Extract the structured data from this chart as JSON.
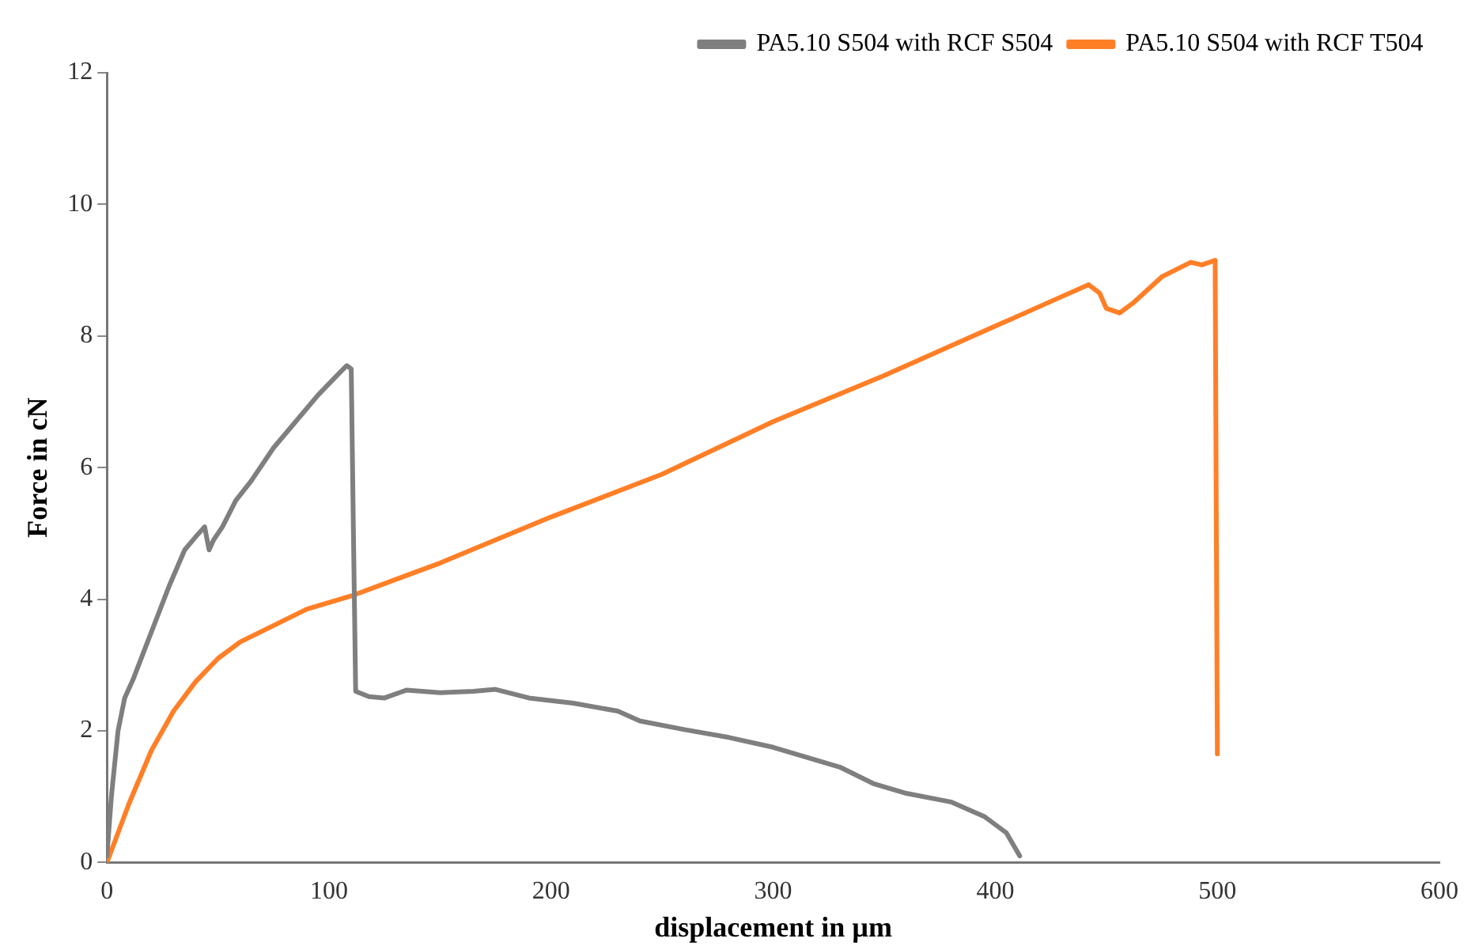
{
  "chart_data": {
    "type": "line",
    "xlabel": "displacement in µm",
    "ylabel": "Force in cN",
    "xlim": [
      0,
      600
    ],
    "xticks": [
      0,
      100,
      200,
      300,
      400,
      500,
      600
    ],
    "ylim": [
      0,
      12
    ],
    "yticks": [
      0,
      2,
      4,
      6,
      8,
      10,
      12
    ],
    "grid": false,
    "legend": "top right",
    "marker": "none",
    "line_style": "solid",
    "series": [
      {
        "name": "PA5.10 S504 with RCF S504",
        "color": "#7f7f7f",
        "x": [
          0,
          2,
          5,
          8,
          12,
          20,
          28,
          35,
          40,
          44,
          46,
          48,
          52,
          58,
          65,
          75,
          85,
          95,
          105,
          108,
          110,
          111,
          112,
          118,
          125,
          135,
          150,
          165,
          175,
          190,
          210,
          230,
          240,
          260,
          280,
          300,
          315,
          330,
          345,
          360,
          380,
          395,
          405,
          411
        ],
        "values": [
          0.1,
          1,
          2,
          2.5,
          2.8,
          3.5,
          4.2,
          4.75,
          4.95,
          5.1,
          4.75,
          4.9,
          5.1,
          5.5,
          5.8,
          6.3,
          6.7,
          7.1,
          7.45,
          7.55,
          7.5,
          5,
          2.6,
          2.52,
          2.5,
          2.62,
          2.58,
          2.6,
          2.63,
          2.5,
          2.42,
          2.3,
          2.15,
          2.02,
          1.9,
          1.75,
          1.6,
          1.45,
          1.2,
          1.05,
          0.92,
          0.7,
          0.45,
          0.1
        ]
      },
      {
        "name": "PA5.10 S504 with RCF T504",
        "color": "#ff7f27",
        "x": [
          0,
          10,
          20,
          30,
          40,
          50,
          60,
          75,
          90,
          110,
          150,
          200,
          250,
          300,
          350,
          400,
          430,
          442,
          447,
          450,
          456,
          462,
          475,
          488,
          493,
          499,
          500
        ],
        "values": [
          0,
          0.9,
          1.7,
          2.3,
          2.75,
          3.1,
          3.35,
          3.6,
          3.85,
          4.05,
          4.55,
          5.25,
          5.9,
          6.7,
          7.4,
          8.15,
          8.6,
          8.78,
          8.65,
          8.42,
          8.35,
          8.5,
          8.9,
          9.12,
          9.08,
          9.15,
          1.65
        ]
      }
    ]
  }
}
